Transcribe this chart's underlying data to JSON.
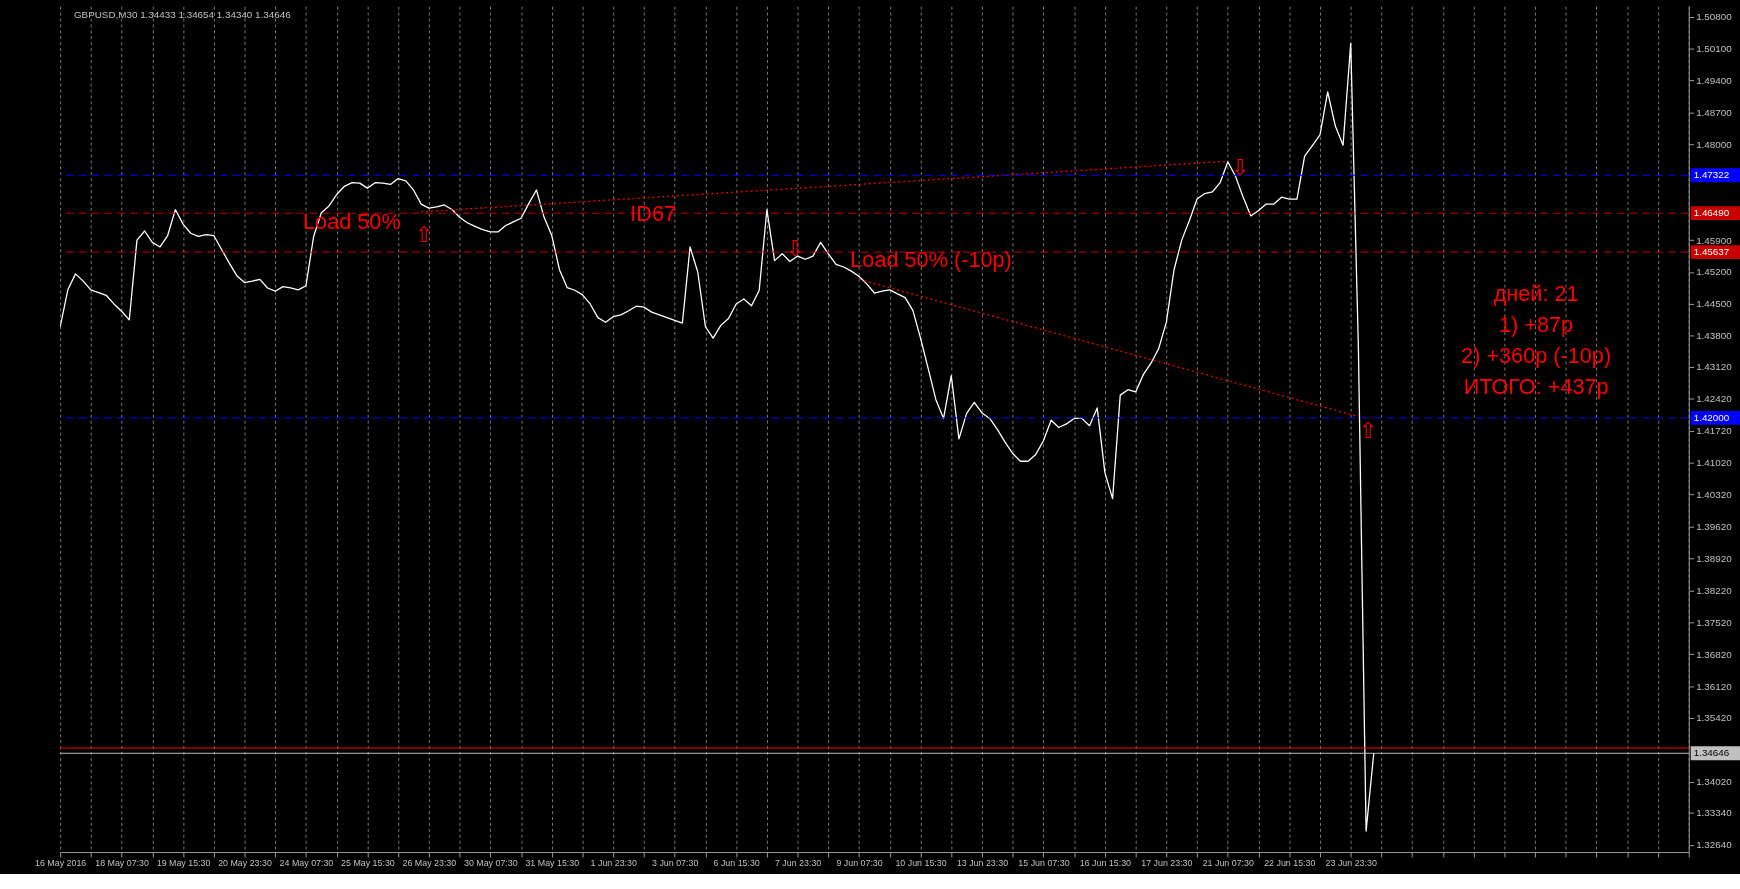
{
  "chart_data": {
    "type": "line",
    "title": "GBPUSD,M30  1.34433 1.34654 1.34340 1.34646",
    "categories": [
      "16 May 2016",
      null,
      null,
      null,
      null,
      null,
      null,
      null,
      "18 May 07:30",
      null,
      null,
      null,
      null,
      null,
      null,
      null,
      "19 May 15:30",
      null,
      null,
      null,
      null,
      null,
      null,
      null,
      "20 May 23:30",
      null,
      null,
      null,
      null,
      null,
      null,
      null,
      "24 May 07:30",
      null,
      null,
      null,
      null,
      null,
      null,
      null,
      "25 May 15:30",
      null,
      null,
      null,
      null,
      null,
      null,
      null,
      "26 May 23:30",
      null,
      null,
      null,
      null,
      null,
      null,
      null,
      "30 May 07:30",
      null,
      null,
      null,
      null,
      null,
      null,
      null,
      "31 May 15:30",
      null,
      null,
      null,
      null,
      null,
      null,
      null,
      "1 Jun 23:30",
      null,
      null,
      null,
      null,
      null,
      null,
      null,
      "3 Jun 07:30",
      null,
      null,
      null,
      null,
      null,
      null,
      null,
      "6 Jun 15:30",
      null,
      null,
      null,
      null,
      null,
      null,
      null,
      "7 Jun 23:30",
      null,
      null,
      null,
      null,
      null,
      null,
      null,
      "9 Jun 07:30",
      null,
      null,
      null,
      null,
      null,
      null,
      null,
      "10 Jun 15:30",
      null,
      null,
      null,
      null,
      null,
      null,
      null,
      "13 Jun 23:30",
      null,
      null,
      null,
      null,
      null,
      null,
      null,
      "15 Jun 07:30",
      null,
      null,
      null,
      null,
      null,
      null,
      null,
      "16 Jun 15:30",
      null,
      null,
      null,
      null,
      null,
      null,
      null,
      "17 Jun 23:30",
      null,
      null,
      null,
      null,
      null,
      null,
      null,
      "21 Jun 07:30",
      null,
      null,
      null,
      null,
      null,
      null,
      null,
      "22 Jun 15:30",
      null,
      null,
      null,
      null,
      null,
      null,
      null,
      "23 Jun 23:30",
      null,
      null,
      null,
      null,
      null,
      null,
      null,
      null,
      null,
      null,
      null,
      null,
      null,
      null,
      null,
      null,
      null,
      null,
      null,
      null,
      null,
      null,
      null,
      null,
      null,
      null,
      null,
      null,
      null,
      null,
      null,
      null,
      null,
      null,
      null,
      null,
      null,
      null,
      null,
      null,
      null,
      null,
      null,
      null
    ],
    "series": [
      {
        "color": "#ffffff",
        "values": [
          1.4399,
          1.4481,
          1.4516,
          1.45,
          1.4481,
          1.4475,
          1.4469,
          1.445,
          1.4434,
          1.4415,
          1.459,
          1.461,
          1.4585,
          1.4575,
          1.46,
          1.4657,
          1.4625,
          1.4605,
          1.4598,
          1.4602,
          1.46,
          1.457,
          1.454,
          1.4512,
          1.4497,
          1.45,
          1.4504,
          1.4485,
          1.4478,
          1.4488,
          1.4485,
          1.4481,
          1.449,
          1.4598,
          1.465,
          1.4665,
          1.469,
          1.4708,
          1.4716,
          1.4715,
          1.4704,
          1.4716,
          1.4715,
          1.4712,
          1.4725,
          1.472,
          1.47,
          1.4669,
          1.466,
          1.4663,
          1.4667,
          1.4657,
          1.464,
          1.4628,
          1.462,
          1.4613,
          1.4608,
          1.4608,
          1.4622,
          1.463,
          1.4638,
          1.467,
          1.47,
          1.464,
          1.46,
          1.4525,
          1.4486,
          1.448,
          1.447,
          1.445,
          1.442,
          1.441,
          1.4422,
          1.4426,
          1.4435,
          1.4445,
          1.4443,
          1.4432,
          1.4426,
          1.442,
          1.4414,
          1.4408,
          1.4575,
          1.452,
          1.44,
          1.4375,
          1.4403,
          1.4418,
          1.445,
          1.4461,
          1.4446,
          1.448,
          1.4657,
          1.4545,
          1.456,
          1.4543,
          1.4555,
          1.4548,
          1.4555,
          1.4585,
          1.456,
          1.4537,
          1.4531,
          1.4522,
          1.451,
          1.4494,
          1.4474,
          1.4478,
          1.4481,
          1.4472,
          1.4464,
          1.4436,
          1.4375,
          1.4308,
          1.424,
          1.4199,
          1.4293,
          1.4154,
          1.421,
          1.4234,
          1.4211,
          1.4199,
          1.4175,
          1.4147,
          1.4122,
          1.4105,
          1.4105,
          1.412,
          1.415,
          1.4195,
          1.4179,
          1.4187,
          1.4199,
          1.4199,
          1.4183,
          1.4222,
          1.408,
          1.4023,
          1.425,
          1.4262,
          1.4257,
          1.4295,
          1.432,
          1.4352,
          1.441,
          1.4525,
          1.459,
          1.4633,
          1.468,
          1.4692,
          1.4696,
          1.4716,
          1.4762,
          1.473,
          1.4684,
          1.4643,
          1.4655,
          1.4669,
          1.4669,
          1.4684,
          1.468,
          1.468,
          1.4774,
          1.4797,
          1.4821,
          1.4915,
          1.484,
          1.4798,
          1.5021,
          1.4351,
          1.3294,
          1.3465,
          null,
          null,
          null,
          null,
          null,
          null,
          null,
          null,
          null,
          null,
          null,
          null,
          null,
          null,
          null,
          null,
          null,
          null,
          null,
          null,
          null,
          null,
          null,
          null,
          null,
          null,
          null,
          null,
          null,
          null,
          null,
          null,
          null,
          null,
          null,
          null,
          null,
          null,
          null,
          null,
          null
        ]
      },
      {
        "type": "line",
        "color": "#ff0000",
        "line_style": "dotted",
        "values": [
          null,
          null,
          null,
          null,
          null,
          null,
          null,
          null,
          null,
          null,
          null,
          null,
          null,
          null,
          null,
          null,
          null,
          null,
          null,
          null,
          null,
          null,
          null,
          null,
          null,
          null,
          null,
          null,
          null,
          null,
          null,
          null,
          null,
          null,
          null,
          null,
          null,
          null,
          null,
          null,
          null,
          null,
          null,
          null,
          null,
          null,
          null,
          1.4652,
          null,
          null,
          null,
          null,
          null,
          null,
          null,
          null,
          null,
          null,
          null,
          null,
          null,
          null,
          null,
          null,
          null,
          null,
          null,
          null,
          null,
          null,
          null,
          null,
          null,
          null,
          null,
          null,
          null,
          null,
          null,
          null,
          null,
          null,
          null,
          null,
          null,
          null,
          null,
          null,
          null,
          null,
          null,
          null,
          null,
          null,
          null,
          null,
          null,
          null,
          null,
          null,
          null,
          null,
          null,
          null,
          null,
          null,
          null,
          null,
          null,
          null,
          null,
          null,
          null,
          null,
          null,
          null,
          null,
          null,
          null,
          null,
          null,
          null,
          null,
          null,
          null,
          null,
          null,
          null,
          null,
          null,
          null,
          null,
          null,
          null,
          null,
          null,
          null,
          null,
          null,
          null,
          null,
          null,
          null,
          null,
          null,
          null,
          null,
          null,
          null,
          null,
          null,
          null,
          1.4763,
          null,
          null,
          null,
          null,
          null,
          null,
          null,
          null,
          null,
          null,
          null,
          null,
          null,
          null,
          null,
          null,
          null,
          null,
          null,
          null,
          null,
          null,
          null,
          null,
          null,
          null,
          null,
          null,
          null,
          null,
          null,
          null,
          null,
          null,
          null,
          null,
          null,
          null,
          null,
          null,
          null,
          null,
          null,
          null,
          null,
          null,
          null,
          null,
          null,
          null,
          null,
          null,
          null,
          null,
          null,
          null,
          null,
          null,
          null,
          null
        ]
      },
      {
        "type": "line",
        "color": "#ff0000",
        "line_style": "dotted",
        "values": [
          null,
          null,
          null,
          null,
          null,
          null,
          null,
          null,
          null,
          null,
          null,
          null,
          null,
          null,
          null,
          null,
          null,
          null,
          null,
          null,
          null,
          null,
          null,
          null,
          null,
          null,
          null,
          null,
          null,
          null,
          null,
          null,
          null,
          null,
          null,
          null,
          null,
          null,
          null,
          null,
          null,
          null,
          null,
          null,
          null,
          null,
          null,
          null,
          null,
          null,
          null,
          null,
          null,
          null,
          null,
          null,
          null,
          null,
          null,
          null,
          null,
          null,
          null,
          null,
          null,
          null,
          null,
          null,
          null,
          null,
          null,
          null,
          null,
          null,
          null,
          null,
          null,
          null,
          null,
          null,
          null,
          null,
          null,
          null,
          null,
          null,
          null,
          null,
          null,
          null,
          null,
          null,
          null,
          null,
          null,
          null,
          null,
          null,
          null,
          null,
          null,
          null,
          null,
          null,
          1.4504,
          null,
          null,
          null,
          null,
          null,
          null,
          null,
          null,
          null,
          null,
          null,
          null,
          null,
          null,
          null,
          null,
          null,
          null,
          null,
          null,
          null,
          null,
          null,
          null,
          null,
          null,
          null,
          null,
          null,
          null,
          null,
          null,
          null,
          null,
          null,
          null,
          null,
          null,
          null,
          null,
          null,
          null,
          null,
          null,
          null,
          null,
          null,
          null,
          null,
          null,
          null,
          null,
          null,
          null,
          null,
          null,
          null,
          null,
          null,
          null,
          null,
          null,
          null,
          null,
          1.4203,
          null,
          null,
          null,
          null,
          null,
          null,
          null,
          null,
          null,
          null,
          null,
          null,
          null,
          null,
          null,
          null,
          null,
          null,
          null,
          null,
          null,
          null,
          null,
          null,
          null,
          null,
          null,
          null,
          null,
          null,
          null,
          null,
          null,
          null,
          null,
          null,
          null,
          null,
          null,
          null,
          null,
          null,
          null
        ]
      }
    ],
    "ylim": [
      1.3248,
      1.5103
    ],
    "yticks": [
      {
        "value": 1.508,
        "label": "1.50800"
      },
      {
        "value": 1.501,
        "label": "1.50100"
      },
      {
        "value": 1.494,
        "label": "1.49400"
      },
      {
        "value": 1.487,
        "label": "1.48700"
      },
      {
        "value": 1.48,
        "label": "1.48000"
      },
      {
        "value": 1.459,
        "label": "1.45900"
      },
      {
        "value": 1.452,
        "label": "1.45200"
      },
      {
        "value": 1.445,
        "label": "1.44500"
      },
      {
        "value": 1.438,
        "label": "1.43800"
      },
      {
        "value": 1.4312,
        "label": "1.43120"
      },
      {
        "value": 1.4242,
        "label": "1.42420"
      },
      {
        "value": 1.4172,
        "label": "1.41720"
      },
      {
        "value": 1.4102,
        "label": "1.41020"
      },
      {
        "value": 1.4032,
        "label": "1.40320"
      },
      {
        "value": 1.3962,
        "label": "1.39620"
      },
      {
        "value": 1.3892,
        "label": "1.38920"
      },
      {
        "value": 1.3822,
        "label": "1.38220"
      },
      {
        "value": 1.3752,
        "label": "1.37520"
      },
      {
        "value": 1.3682,
        "label": "1.36820"
      },
      {
        "value": 1.3612,
        "label": "1.36120"
      },
      {
        "value": 1.3542,
        "label": "1.35420"
      },
      {
        "value": 1.3402,
        "label": "1.34020"
      },
      {
        "value": 1.3334,
        "label": "1.33340"
      },
      {
        "value": 1.3264,
        "label": "1.32640"
      }
    ],
    "grid": "x",
    "ref_lines": [
      {
        "axis": "y",
        "value": 1.47322,
        "label": "1.47322",
        "color": "#0000ff",
        "line_style": "dashed"
      },
      {
        "axis": "y",
        "value": 1.4649,
        "label": "1.46490",
        "color": "#c80000",
        "line_style": "dashed"
      },
      {
        "axis": "y",
        "value": 1.45637,
        "label": "1.45637",
        "color": "#c80000",
        "line_style": "dashed"
      },
      {
        "axis": "y",
        "value": 1.42,
        "label": "1.42000",
        "color": "#0000ff",
        "line_style": "dashed"
      },
      {
        "axis": "y",
        "value": 1.3476,
        "label": null,
        "color": "#ff0000",
        "line_style": "solid"
      },
      {
        "axis": "y",
        "value": 1.34646,
        "label": "1.34646",
        "color": "#c0c0c0",
        "line_style": "solid"
      }
    ],
    "annotations": [
      "Load 50%",
      "⇧",
      "ID67",
      "⇩",
      {
        "text": "Load 50% (-10p)",
        "x": "9 Jun 07:30",
        "y": 1.4504
      },
      "⇩",
      {
        "text": "⇧",
        "y": 1.42
      },
      "дней: 21",
      "1) +87p",
      "2) +360p (-10p)",
      "ИТОГО: +437p"
    ]
  }
}
